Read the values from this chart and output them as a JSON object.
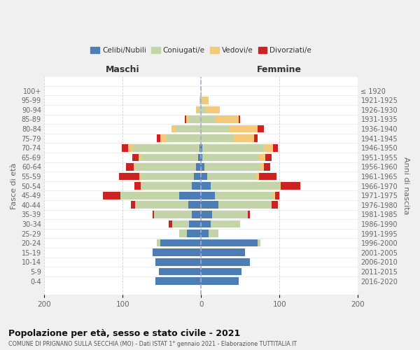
{
  "age_groups": [
    "0-4",
    "5-9",
    "10-14",
    "15-19",
    "20-24",
    "25-29",
    "30-34",
    "35-39",
    "40-44",
    "45-49",
    "50-54",
    "55-59",
    "60-64",
    "65-69",
    "70-74",
    "75-79",
    "80-84",
    "85-89",
    "90-94",
    "95-99",
    "100+"
  ],
  "birth_years": [
    "2016-2020",
    "2011-2015",
    "2006-2010",
    "2001-2005",
    "1996-2000",
    "1991-1995",
    "1986-1990",
    "1981-1985",
    "1976-1980",
    "1971-1975",
    "1966-1970",
    "1961-1965",
    "1956-1960",
    "1951-1955",
    "1946-1950",
    "1941-1945",
    "1936-1940",
    "1931-1935",
    "1926-1930",
    "1921-1925",
    "≤ 1920"
  ],
  "maschi": {
    "celibi": [
      58,
      54,
      58,
      62,
      52,
      18,
      15,
      12,
      16,
      28,
      12,
      9,
      6,
      4,
      2,
      0,
      0,
      0,
      0,
      0,
      0
    ],
    "coniugati": [
      0,
      0,
      0,
      0,
      4,
      10,
      22,
      48,
      68,
      75,
      65,
      68,
      78,
      72,
      85,
      44,
      32,
      15,
      4,
      2,
      0
    ],
    "vedovi": [
      0,
      0,
      0,
      0,
      0,
      0,
      0,
      0,
      0,
      0,
      0,
      2,
      2,
      4,
      6,
      8,
      6,
      4,
      2,
      0,
      0
    ],
    "divorziati": [
      0,
      0,
      0,
      0,
      0,
      0,
      4,
      2,
      5,
      22,
      8,
      26,
      10,
      8,
      8,
      4,
      0,
      2,
      0,
      0,
      0
    ]
  },
  "femmine": {
    "nubili": [
      48,
      52,
      62,
      56,
      72,
      10,
      12,
      14,
      22,
      18,
      12,
      8,
      4,
      2,
      2,
      0,
      0,
      0,
      0,
      0,
      0
    ],
    "coniugate": [
      0,
      0,
      0,
      0,
      4,
      12,
      38,
      46,
      68,
      74,
      88,
      62,
      72,
      72,
      78,
      42,
      36,
      18,
      6,
      2,
      0
    ],
    "vedove": [
      0,
      0,
      0,
      0,
      0,
      0,
      0,
      0,
      0,
      2,
      2,
      4,
      4,
      8,
      12,
      26,
      36,
      30,
      18,
      8,
      1
    ],
    "divorziate": [
      0,
      0,
      0,
      0,
      0,
      0,
      0,
      2,
      8,
      6,
      25,
      22,
      8,
      8,
      6,
      4,
      8,
      2,
      0,
      0,
      0
    ]
  },
  "colors": {
    "celibi": "#4d7db5",
    "coniugati": "#c2d4a8",
    "vedovi": "#f5c97a",
    "divorziati": "#cc2222"
  },
  "xlim": 200,
  "title": "Popolazione per età, sesso e stato civile - 2021",
  "subtitle": "COMUNE DI PRIGNANO SULLA SECCHIA (MO) - Dati ISTAT 1° gennaio 2021 - Elaborazione TUTTITALIA.IT",
  "ylabel": "Fasce di età",
  "ylabel2": "Anni di nascita",
  "maschi_label": "Maschi",
  "femmine_label": "Femmine",
  "legend_labels": [
    "Celibi/Nubili",
    "Coniugati/e",
    "Vedovi/e",
    "Divorziati/e"
  ],
  "bg_color": "#f0f0f0",
  "plot_bg": "#ffffff"
}
